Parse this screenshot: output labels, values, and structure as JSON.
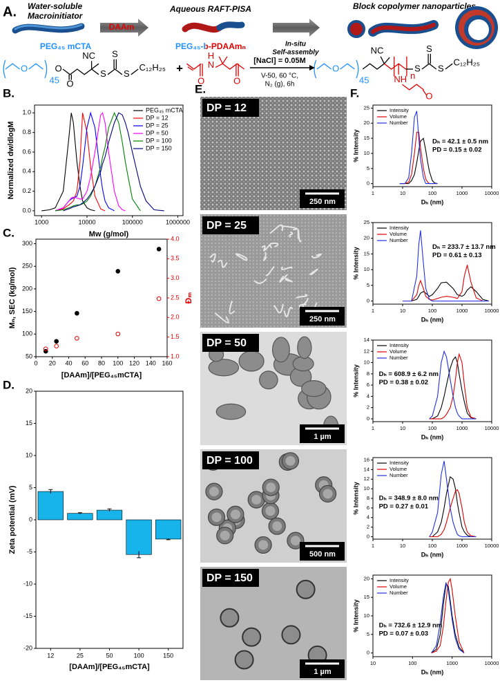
{
  "scheme": {
    "label": "A.",
    "step1": [
      "Water-soluble",
      "Macroinitiator"
    ],
    "reagent": "DAAm",
    "step2": "Aqueous RAFT-PISA",
    "step3": [
      "In-situ",
      "Self-assembly"
    ],
    "step4": "Block copolymer nanoparticles",
    "macro": "PEG₄₅ mCTA",
    "block": "PEG₄₅-b-PDAAmₙ",
    "conditions": [
      "[NaCl] = 0.05M",
      "V-50, 60 °C,",
      "N₂ (g), 6h"
    ],
    "chem": [
      "O",
      "45",
      "O",
      "O",
      "NC",
      "S",
      "S",
      "S",
      "C₁₂H₂₅",
      "+",
      "H",
      "N",
      "O",
      "O",
      "O",
      "45",
      "NC",
      "n",
      "S",
      "S",
      "S",
      "C₁₂H₂₅",
      "NH",
      "O"
    ]
  },
  "micrographs": {
    "label": "E.",
    "panels": [
      {
        "dp": "DP = 12",
        "scale": "250 nm"
      },
      {
        "dp": "DP = 25",
        "scale": "250 nm"
      },
      {
        "dp": "DP = 50",
        "scale": "1 µm"
      },
      {
        "dp": "DP = 100",
        "scale": "500 nm"
      },
      {
        "dp": "DP = 150",
        "scale": "1 µm"
      }
    ]
  },
  "chart_data": [
    {
      "type": "line",
      "panel": "B.",
      "xscale": "log",
      "xlabel": "Mw (g/mol)",
      "ylabel": "Normalized dw/dlogM",
      "legend": "upper right",
      "xlim": [
        700,
        1300000
      ],
      "xticks": [
        1000,
        10000,
        100000,
        1000000
      ],
      "ylim": [
        -0.05,
        1.08
      ],
      "yticks": [
        {
          "value": 0,
          "label": "0.0"
        },
        0.2,
        0.4,
        0.6,
        0.8,
        {
          "value": 1,
          "label": "1.0"
        }
      ],
      "x": [
        1000,
        1500,
        2000,
        3000,
        4000,
        4500,
        5000,
        6000,
        7000,
        8000,
        10000,
        12000,
        15000,
        20000,
        22000,
        25000,
        30000,
        40000,
        50000,
        60000,
        70000,
        80000,
        100000,
        150000,
        200000,
        300000,
        500000
      ],
      "series": [
        {
          "name": "PEG₄₅ mCTA",
          "color": "#000000",
          "values": [
            0,
            0.01,
            0.03,
            0.2,
            0.75,
            1.0,
            0.9,
            0.5,
            0.25,
            0.1,
            0.03,
            0.01,
            0,
            null,
            null,
            null,
            null,
            null,
            null,
            null,
            null,
            null,
            null,
            null,
            null,
            null,
            null
          ]
        },
        {
          "name": "DP = 12",
          "color": "#ff0000",
          "values": [
            null,
            null,
            0,
            0.02,
            0.06,
            0.08,
            0.1,
            0.2,
            0.5,
            1.0,
            0.8,
            0.45,
            0.15,
            0.02,
            0.01,
            0,
            null,
            null,
            null,
            null,
            null,
            null,
            null,
            null,
            null,
            null,
            null
          ]
        },
        {
          "name": "DP = 25",
          "color": "#0000ff",
          "values": [
            null,
            null,
            0,
            0.03,
            0.1,
            0.12,
            0.13,
            0.15,
            0.25,
            0.45,
            0.85,
            1.0,
            0.85,
            0.35,
            0.22,
            0.1,
            0.03,
            0,
            null,
            null,
            null,
            null,
            null,
            null,
            null,
            null,
            null
          ]
        },
        {
          "name": "DP = 50",
          "color": "#ff00ff",
          "values": [
            null,
            null,
            0,
            0.03,
            0.1,
            0.13,
            0.14,
            0.13,
            0.12,
            0.12,
            0.2,
            0.35,
            0.6,
            0.98,
            1.0,
            0.9,
            0.6,
            0.2,
            0.05,
            0.01,
            0,
            null,
            null,
            null,
            null,
            null,
            null
          ]
        },
        {
          "name": "DP = 100",
          "color": "#008000",
          "values": [
            null,
            null,
            0,
            0.01,
            0.03,
            0.04,
            0.05,
            0.06,
            0.06,
            0.07,
            0.1,
            0.15,
            0.25,
            0.45,
            0.55,
            0.65,
            0.85,
            1.0,
            0.9,
            0.7,
            0.5,
            0.35,
            0.12,
            0,
            null,
            null,
            null
          ]
        },
        {
          "name": "DP = 150",
          "color": "#000080",
          "values": [
            null,
            null,
            null,
            0,
            0.02,
            0.03,
            0.04,
            0.05,
            0.06,
            0.08,
            0.12,
            0.17,
            0.25,
            0.4,
            0.48,
            0.55,
            0.7,
            0.9,
            1.0,
            0.98,
            0.9,
            0.8,
            0.6,
            0.25,
            0.1,
            0.01,
            0
          ]
        }
      ]
    },
    {
      "type": "scatter",
      "panel": "C.",
      "xlabel": "[DAAm]/[PEG₄₅mCTA]",
      "ylabel": "Mₙ, SEC (kg/mol)",
      "y2label": "Đₘ",
      "xlim": [
        0,
        160
      ],
      "xticks": [
        0,
        20,
        40,
        60,
        80,
        100,
        120,
        140,
        160
      ],
      "ylim": [
        50,
        310
      ],
      "yticks": [
        50,
        100,
        150,
        200,
        250,
        300
      ],
      "y2lim": [
        1,
        4
      ],
      "y2ticks": [
        {
          "value": 1,
          "label": "1.0"
        },
        1.5,
        {
          "value": 2,
          "label": "2.0"
        },
        2.5,
        {
          "value": 3,
          "label": "3.0"
        },
        3.5,
        {
          "value": 4,
          "label": "4.0"
        }
      ],
      "x": [
        12,
        25,
        50,
        100,
        150
      ],
      "series": [
        {
          "color": "#000000",
          "marker": "filled",
          "values": [
            62,
            84,
            146,
            239,
            288
          ]
        },
        {
          "color": "#e00000",
          "marker": "open",
          "axis": "y2",
          "values": [
            1.2,
            1.27,
            1.47,
            1.58,
            2.48
          ]
        }
      ]
    },
    {
      "type": "bar",
      "panel": "D.",
      "xlabel": "[DAAm]/[PEG₄₅mCTA]",
      "ylabel": "Zeta potential (mV)",
      "color": "#16b4ea",
      "categories": [
        "12",
        "25",
        "50",
        "100",
        "150"
      ],
      "values": [
        4.4,
        1.0,
        1.5,
        -5.4,
        -3.0
      ],
      "errors": [
        0.3,
        0.1,
        0.2,
        0.5,
        0.1
      ],
      "ylim": [
        -20,
        20
      ],
      "yticks": [
        -20,
        -15,
        -10,
        -5,
        0,
        5,
        10,
        15,
        20
      ]
    },
    {
      "type": "line",
      "panel": "F.",
      "xscale": "log",
      "xlabel": "Dₕ (nm)",
      "ylabel": "% Intensity",
      "legend": "upper left",
      "xlim": [
        1,
        10000
      ],
      "xticks": [
        1,
        10,
        100,
        1000,
        10000
      ],
      "ylim": [
        -1,
        26
      ],
      "yticks": [
        0,
        5,
        10,
        15,
        20,
        25
      ],
      "annotations": [
        "Dₕ = 42.1 ± 0.5 nm",
        "PD = 0.15 ± 0.02"
      ],
      "x": [
        8,
        12,
        16,
        20,
        25,
        30,
        35,
        40,
        50,
        60,
        70,
        80,
        100,
        120,
        150
      ],
      "series": [
        {
          "name": "Intensity",
          "color": "#000000",
          "values": [
            0,
            0,
            0,
            1,
            3,
            7,
            11,
            14,
            15,
            11,
            7,
            4,
            1,
            0.2,
            0
          ]
        },
        {
          "name": "Volume",
          "color": "#e00000",
          "values": [
            0,
            0,
            0.5,
            3,
            10,
            17,
            17,
            12,
            5,
            1.5,
            0.5,
            0,
            0,
            0,
            0
          ]
        },
        {
          "name": "Number",
          "color": "#1f2fe0",
          "values": [
            0,
            0,
            2,
            10,
            22,
            24,
            15,
            8,
            2,
            0,
            0,
            0,
            0,
            0,
            0
          ]
        }
      ]
    },
    {
      "type": "line",
      "xscale": "log",
      "xlabel": "Dₕ (nm)",
      "ylabel": "% Intensity",
      "legend": "upper left",
      "xlim": [
        1,
        10000
      ],
      "xticks": [
        1,
        10,
        100,
        1000,
        10000
      ],
      "ylim": [
        -1,
        25
      ],
      "yticks": [
        0,
        5,
        10,
        15,
        20,
        25
      ],
      "annotations": [
        "Dₕ = 233.7 ± 13.7 nm",
        "PD = 0.61 ± 0.13"
      ],
      "x": [
        10,
        20,
        30,
        35,
        40,
        50,
        60,
        80,
        100,
        150,
        200,
        300,
        500,
        700,
        1000,
        1200,
        1500,
        2000,
        3000,
        5000,
        8000
      ],
      "series": [
        {
          "name": "Intensity",
          "color": "#000000",
          "values": [
            0,
            0,
            0.5,
            1.5,
            2.5,
            3,
            2.5,
            1.5,
            2,
            4,
            5.8,
            6,
            4,
            2,
            1.5,
            2,
            3.5,
            4.5,
            3,
            0.5,
            0
          ]
        },
        {
          "name": "Volume",
          "color": "#e00000",
          "values": [
            0,
            0,
            2,
            5,
            6.5,
            4,
            1.5,
            0.5,
            0.3,
            0.8,
            1.2,
            1.5,
            1.2,
            0.8,
            3,
            8,
            11.5,
            6,
            1,
            0,
            0
          ]
        },
        {
          "name": "Number",
          "color": "#1f2fe0",
          "values": [
            0,
            0,
            8,
            18,
            22.5,
            12,
            4,
            0.5,
            0,
            0,
            0,
            0,
            0,
            0,
            0,
            0,
            0,
            0,
            0,
            0,
            0
          ]
        }
      ]
    },
    {
      "type": "line",
      "xscale": "log",
      "xlabel": "Dₕ (nm)",
      "ylabel": "% Intensity",
      "legend": "upper left",
      "xlim": [
        1,
        10000
      ],
      "xticks": [
        1,
        10,
        100,
        1000,
        10000
      ],
      "ylim": [
        -0.5,
        14
      ],
      "yticks": [
        0,
        2,
        4,
        6,
        8,
        10,
        12,
        14
      ],
      "annotations": [
        "Dₕ = 608.9 ± 6.2 nm",
        "PD = 0.38 ± 0.02"
      ],
      "x": [
        80,
        100,
        150,
        200,
        250,
        300,
        400,
        500,
        600,
        700,
        800,
        1000,
        1200,
        1500,
        2000,
        3000
      ],
      "series": [
        {
          "name": "Intensity",
          "color": "#000000",
          "values": [
            0,
            0,
            0.5,
            2,
            4,
            6,
            9,
            10.5,
            11,
            10,
            8,
            5,
            3,
            1,
            0.2,
            0
          ]
        },
        {
          "name": "Volume",
          "color": "#e00000",
          "values": [
            0,
            0,
            0,
            0,
            0.3,
            0.8,
            2,
            4,
            7,
            10,
            11.5,
            10,
            6,
            2,
            0.3,
            0
          ]
        },
        {
          "name": "Number",
          "color": "#1f2fe0",
          "values": [
            0,
            0.5,
            4,
            10,
            12,
            11,
            7,
            4,
            2,
            1,
            0.5,
            0,
            0,
            0,
            0,
            0
          ]
        }
      ]
    },
    {
      "type": "line",
      "xscale": "log",
      "xlabel": "Dₕ (nm)",
      "ylabel": "% Intensity",
      "legend": "upper left",
      "xlim": [
        1,
        10000
      ],
      "xticks": [
        1,
        10,
        100,
        1000,
        10000
      ],
      "ylim": [
        -0.5,
        16.5
      ],
      "yticks": [
        0,
        2,
        4,
        6,
        8,
        10,
        12,
        14,
        16
      ],
      "annotations": [
        "Dₕ = 348.9 ± 8.0 nm",
        "PD = 0.27 ± 0.01"
      ],
      "x": [
        80,
        100,
        150,
        200,
        250,
        300,
        400,
        500,
        600,
        700,
        800,
        1000,
        1200,
        1500,
        2000,
        3000
      ],
      "series": [
        {
          "name": "Intensity",
          "color": "#000000",
          "values": [
            0,
            0,
            1,
            3,
            6,
            9,
            12.5,
            12,
            10,
            7,
            5,
            2,
            1,
            0.3,
            0,
            0
          ]
        },
        {
          "name": "Volume",
          "color": "#e00000",
          "values": [
            0,
            0,
            0,
            0.5,
            1.5,
            3,
            6,
            8,
            9.5,
            9.8,
            9,
            6,
            3,
            1,
            0.2,
            0
          ]
        },
        {
          "name": "Number",
          "color": "#1f2fe0",
          "values": [
            0,
            1,
            5,
            13,
            15.8,
            12,
            6,
            3,
            1.5,
            0.5,
            0.2,
            0,
            0,
            0,
            0,
            0
          ]
        }
      ]
    },
    {
      "type": "line",
      "xscale": "log",
      "xlabel": "Dₕ (nm)",
      "ylabel": "% Intensity",
      "legend": "upper left",
      "xlim": [
        10,
        10000
      ],
      "xticks": [
        10,
        100,
        1000,
        10000
      ],
      "ylim": [
        -1,
        21
      ],
      "yticks": [
        0,
        5,
        10,
        15,
        20
      ],
      "annotations": [
        "Dₕ = 732.6 ± 12.9 nm",
        "PD = 0.07 ± 0.03"
      ],
      "x": [
        300,
        400,
        500,
        600,
        700,
        800,
        900,
        1000,
        1200,
        1500,
        2000
      ],
      "series": [
        {
          "name": "Intensity",
          "color": "#000000",
          "values": [
            0,
            1,
            5,
            13,
            18.5,
            18,
            14,
            10,
            5,
            1.5,
            0
          ]
        },
        {
          "name": "Volume",
          "color": "#e00000",
          "values": [
            0,
            0.5,
            2,
            7,
            14,
            19,
            20,
            17,
            10,
            3,
            0
          ]
        },
        {
          "name": "Number",
          "color": "#1f2fe0",
          "values": [
            0,
            2,
            8,
            15,
            19,
            17,
            13,
            9,
            4,
            1,
            0
          ]
        }
      ]
    }
  ]
}
